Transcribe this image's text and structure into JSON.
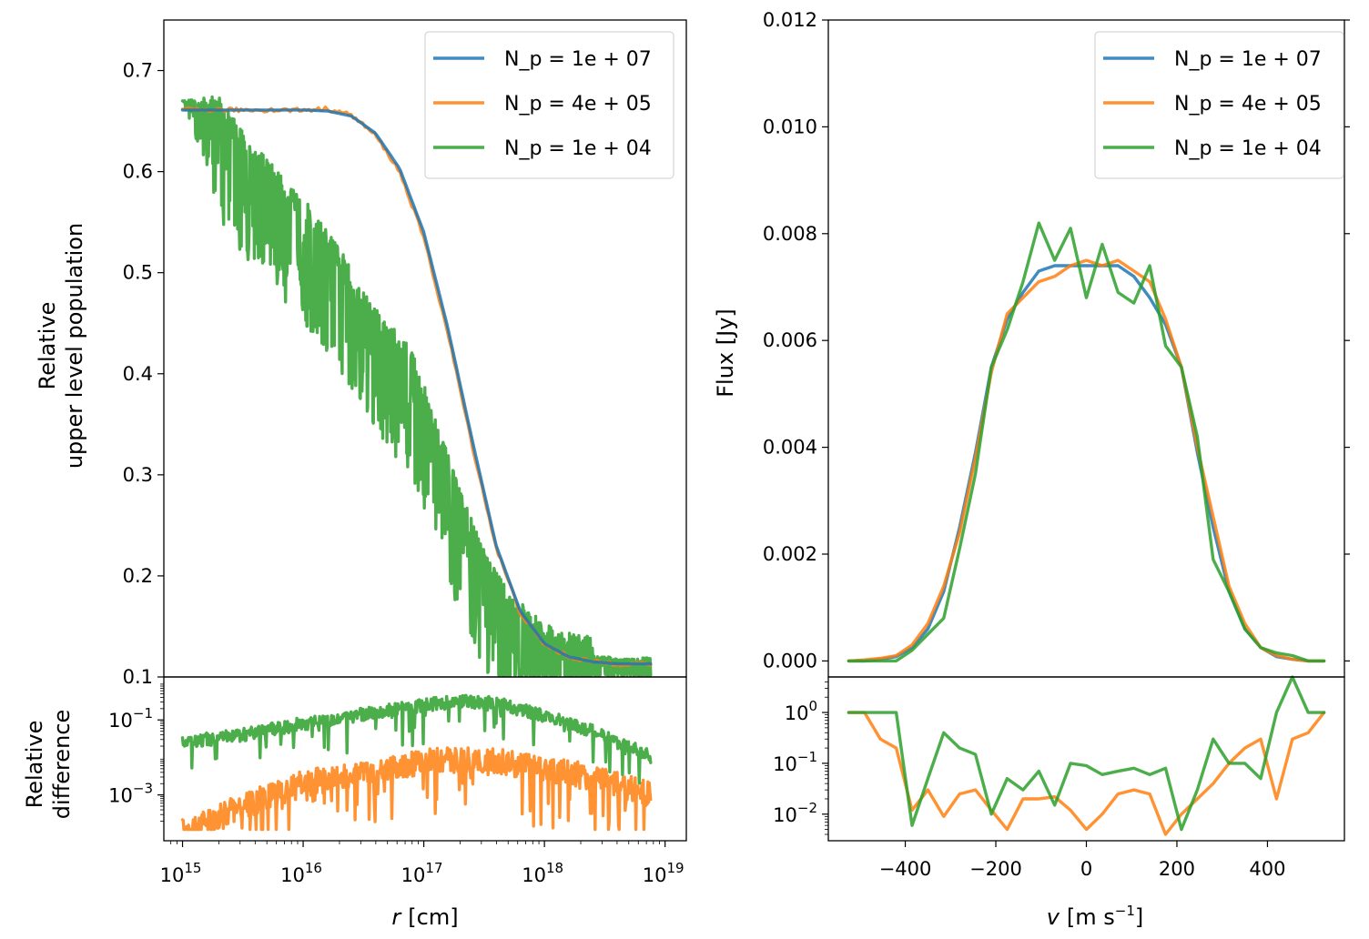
{
  "colors": {
    "blue": "#1f77b4",
    "orange": "#ff7f0e",
    "green": "#2ca02c"
  },
  "chart_data": [
    {
      "id": "left_top",
      "type": "line",
      "xscale": "log",
      "xlim": [
        700000000000000.0,
        1.5e+19
      ],
      "ylim": [
        0.1,
        0.75
      ],
      "ylabel_lines": [
        "Relative",
        "upper level population"
      ],
      "yticks": [
        0.1,
        0.2,
        0.3,
        0.4,
        0.5,
        0.6,
        0.7
      ],
      "ytick_labels": [
        "0.1",
        "0.2",
        "0.3",
        "0.4",
        "0.5",
        "0.6",
        "0.7"
      ],
      "legend": {
        "position": "top-right",
        "entries": [
          "N_p = 1e + 07",
          "N_p = 4e + 05",
          "N_p = 1e + 04"
        ]
      },
      "series": [
        {
          "name": "N_p = 1e + 07",
          "color": "blue",
          "logx": [
            15,
            15.5,
            16,
            16.2,
            16.4,
            16.6,
            16.8,
            17,
            17.2,
            17.4,
            17.6,
            17.8,
            18,
            18.2,
            18.4,
            18.6,
            18.8,
            18.9
          ],
          "y": [
            0.661,
            0.661,
            0.661,
            0.66,
            0.655,
            0.638,
            0.603,
            0.54,
            0.445,
            0.335,
            0.23,
            0.165,
            0.133,
            0.12,
            0.115,
            0.113,
            0.113,
            0.113
          ]
        },
        {
          "name": "N_p = 4e + 05",
          "color": "orange",
          "noise": 0.004,
          "logx": [
            15,
            15.5,
            16,
            16.2,
            16.4,
            16.6,
            16.8,
            17,
            17.2,
            17.4,
            17.6,
            17.8,
            18,
            18.2,
            18.4,
            18.6,
            18.8,
            18.9
          ],
          "y": [
            0.661,
            0.661,
            0.661,
            0.662,
            0.656,
            0.636,
            0.6,
            0.535,
            0.44,
            0.33,
            0.228,
            0.163,
            0.132,
            0.12,
            0.115,
            0.113,
            0.113,
            0.113
          ]
        },
        {
          "name": "N_p = 1e + 04",
          "color": "green",
          "noise": 0.05,
          "logx": [
            15,
            15.3,
            15.6,
            16,
            16.3,
            16.6,
            16.9,
            17.1,
            17.3,
            17.5,
            17.7,
            17.9,
            18.1,
            18.4,
            18.7,
            18.9
          ],
          "y": [
            0.67,
            0.65,
            0.6,
            0.55,
            0.5,
            0.44,
            0.4,
            0.33,
            0.26,
            0.2,
            0.16,
            0.14,
            0.12,
            0.115,
            0.112,
            0.113
          ]
        }
      ]
    },
    {
      "id": "left_bottom",
      "type": "line",
      "xscale": "log",
      "yscale": "log",
      "xlim": [
        700000000000000.0,
        1.5e+19
      ],
      "ylim": [
        6e-05,
        1.4
      ],
      "xlabel_var": "r",
      "xlabel_unit": "[cm]",
      "ylabel_lines": [
        "Relative",
        "difference"
      ],
      "xticks": [
        15,
        16,
        17,
        18,
        19
      ],
      "xtick_base": "10",
      "xtick_exps": [
        "15",
        "16",
        "17",
        "18",
        "19"
      ],
      "yticks": [
        -3,
        -1
      ],
      "ytick_base": "10",
      "ytick_exps": [
        "−3",
        "−1"
      ],
      "series": [
        {
          "name": "N_p = 4e + 05",
          "color": "orange",
          "noise": 0.5,
          "logx": [
            15,
            15.5,
            16,
            16.5,
            17,
            17.5,
            18,
            18.5,
            18.9
          ],
          "logy": [
            -4,
            -3.3,
            -2.7,
            -2.4,
            -2.1,
            -2.05,
            -2.3,
            -2.6,
            -3
          ]
        },
        {
          "name": "N_p = 1e + 04",
          "color": "green",
          "noise": 0.18,
          "logx": [
            15,
            15.5,
            16,
            16.5,
            17,
            17.3,
            17.6,
            18,
            18.4,
            18.9
          ],
          "logy": [
            -1.6,
            -1.4,
            -1.1,
            -0.85,
            -0.6,
            -0.5,
            -0.55,
            -0.9,
            -1.3,
            -2
          ]
        }
      ]
    },
    {
      "id": "right_top",
      "type": "line",
      "xlim": [
        -570,
        570
      ],
      "ylim": [
        -0.0003,
        0.012
      ],
      "ylabel": "Flux [Jy]",
      "yticks": [
        0,
        0.002,
        0.004,
        0.006,
        0.008,
        0.01,
        0.012
      ],
      "ytick_labels": [
        "0.000",
        "0.002",
        "0.004",
        "0.006",
        "0.008",
        "0.010",
        "0.012"
      ],
      "legend": {
        "position": "top-right",
        "entries": [
          "N_p = 1e + 07",
          "N_p = 4e + 05",
          "N_p = 1e + 04"
        ]
      },
      "x": [
        -525,
        -490,
        -455,
        -420,
        -385,
        -350,
        -315,
        -280,
        -245,
        -210,
        -175,
        -140,
        -105,
        -70,
        -35,
        0,
        35,
        70,
        105,
        140,
        175,
        210,
        245,
        280,
        315,
        350,
        385,
        420,
        455,
        490,
        525
      ],
      "series": [
        {
          "name": "N_p = 1e + 07",
          "color": "blue",
          "values": [
            0,
            0,
            3e-05,
            8e-05,
            0.00025,
            0.0006,
            0.0013,
            0.0025,
            0.0039,
            0.0055,
            0.0064,
            0.0069,
            0.0073,
            0.0074,
            0.0074,
            0.0074,
            0.0074,
            0.0074,
            0.0072,
            0.0068,
            0.0063,
            0.0055,
            0.0039,
            0.0025,
            0.0013,
            0.0006,
            0.00025,
            8e-05,
            3e-05,
            0,
            0
          ]
        },
        {
          "name": "N_p = 4e + 05",
          "color": "orange",
          "values": [
            0,
            2e-05,
            5e-05,
            0.0001,
            0.0003,
            0.0007,
            0.0014,
            0.0024,
            0.0038,
            0.0054,
            0.0065,
            0.0068,
            0.0071,
            0.0072,
            0.0074,
            0.0075,
            0.0074,
            0.0075,
            0.0073,
            0.0071,
            0.0064,
            0.0055,
            0.004,
            0.0027,
            0.0014,
            0.0007,
            0.00025,
            0.0001,
            3e-05,
            0,
            0
          ]
        },
        {
          "name": "N_p = 1e + 04",
          "color": "green",
          "values": [
            0,
            0,
            0,
            0,
            0.0002,
            0.0005,
            0.0008,
            0.0021,
            0.0035,
            0.0055,
            0.0062,
            0.0071,
            0.0082,
            0.0075,
            0.0081,
            0.0068,
            0.0078,
            0.0069,
            0.0067,
            0.0074,
            0.0059,
            0.0055,
            0.0042,
            0.0019,
            0.0013,
            0.0006,
            0.00025,
            0.00015,
            0.0001,
            0,
            0
          ]
        }
      ]
    },
    {
      "id": "right_bottom",
      "type": "line",
      "yscale": "log",
      "xlim": [
        -570,
        570
      ],
      "ylim": [
        0.003,
        5
      ],
      "xlabel_var": "v",
      "xlabel_unit": "[m s",
      "xlabel_unit_exp": "−1",
      "xlabel_close": "]",
      "xticks": [
        -400,
        -200,
        0,
        200,
        400
      ],
      "xtick_labels": [
        "−400",
        "−200",
        "0",
        "200",
        "400"
      ],
      "yticks": [
        -2,
        -1,
        0
      ],
      "ytick_base": "10",
      "ytick_exps": [
        "−2",
        "−1",
        "0"
      ],
      "x": [
        -525,
        -490,
        -455,
        -420,
        -385,
        -350,
        -315,
        -280,
        -245,
        -210,
        -175,
        -140,
        -105,
        -70,
        -35,
        0,
        35,
        70,
        105,
        140,
        175,
        210,
        245,
        280,
        315,
        350,
        385,
        420,
        455,
        490,
        525
      ],
      "series": [
        {
          "name": "N_p = 4e + 05",
          "color": "orange",
          "values": [
            1,
            1,
            0.3,
            0.2,
            0.012,
            0.03,
            0.009,
            0.025,
            0.03,
            0.012,
            0.005,
            0.02,
            0.02,
            0.022,
            0.012,
            0.005,
            0.01,
            0.025,
            0.03,
            0.025,
            0.004,
            0.01,
            0.02,
            0.04,
            0.1,
            0.2,
            0.3,
            0.02,
            0.3,
            0.4,
            1
          ]
        },
        {
          "name": "N_p = 1e + 04",
          "color": "green",
          "values": [
            1,
            1,
            1,
            1,
            0.006,
            0.05,
            0.4,
            0.2,
            0.15,
            0.01,
            0.05,
            0.03,
            0.07,
            0.015,
            0.1,
            0.09,
            0.06,
            0.07,
            0.08,
            0.06,
            0.08,
            0.005,
            0.03,
            0.3,
            0.1,
            0.1,
            0.05,
            1,
            5,
            1,
            1
          ]
        }
      ]
    }
  ]
}
